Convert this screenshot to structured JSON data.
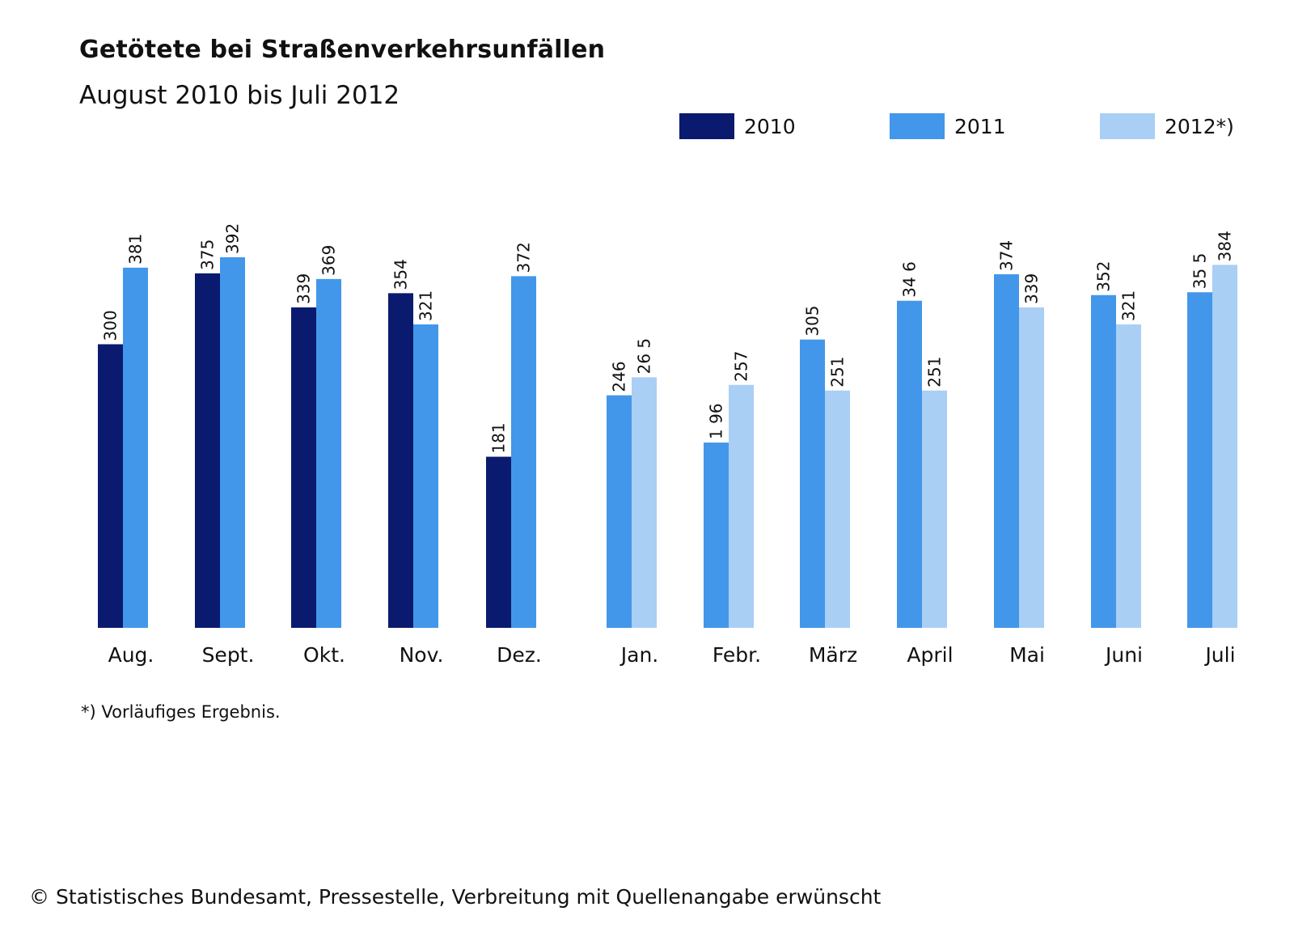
{
  "header": {
    "title": "Getötete bei Straßenverkehrsunfällen",
    "subtitle": "August 2010 bis Juli 2012"
  },
  "footnote": "*) Vorläufiges Ergebnis.",
  "source": "© Statistisches Bundesamt, Pressestelle, Verbreitung mit Quellenangabe erwünscht",
  "legend": [
    {
      "label": "2010",
      "color": "#0a1a6e"
    },
    {
      "label": "2011",
      "color": "#4297ea"
    },
    {
      "label": "2012*)",
      "color": "#a9cff5"
    }
  ],
  "chart_data": {
    "type": "bar",
    "title": "Getötete bei Straßenverkehrsunfällen",
    "subtitle": "August 2010 bis Juli 2012",
    "categories": [
      "Aug.",
      "Sept.",
      "Okt.",
      "Nov.",
      "Dez.",
      "Jan.",
      "Febr.",
      "März",
      "April",
      "Mai",
      "Juni",
      "Juli"
    ],
    "series": [
      {
        "name": "2010",
        "color": "#0a1a6e",
        "values": [
          300,
          375,
          339,
          354,
          181,
          null,
          null,
          null,
          null,
          null,
          null,
          null
        ],
        "labels": [
          "300",
          "375",
          "339",
          "354",
          "181",
          null,
          null,
          null,
          null,
          null,
          null,
          null
        ]
      },
      {
        "name": "2011",
        "color": "#4297ea",
        "values": [
          381,
          392,
          369,
          321,
          372,
          246,
          196,
          305,
          346,
          374,
          352,
          355
        ],
        "labels": [
          "381",
          "392",
          "369",
          "321",
          "372",
          "246",
          "1 96",
          "305",
          "34 6",
          "374",
          "352",
          "35 5"
        ]
      },
      {
        "name": "2012*)",
        "color": "#a9cff5",
        "values": [
          null,
          null,
          null,
          null,
          null,
          265,
          257,
          251,
          251,
          339,
          321,
          384
        ],
        "labels": [
          null,
          null,
          null,
          null,
          null,
          "26 5",
          "257",
          "251",
          "251",
          "339",
          "321",
          "384"
        ]
      }
    ],
    "ylim": [
      0,
      392
    ],
    "grid": false,
    "legend_position": "top-right"
  }
}
